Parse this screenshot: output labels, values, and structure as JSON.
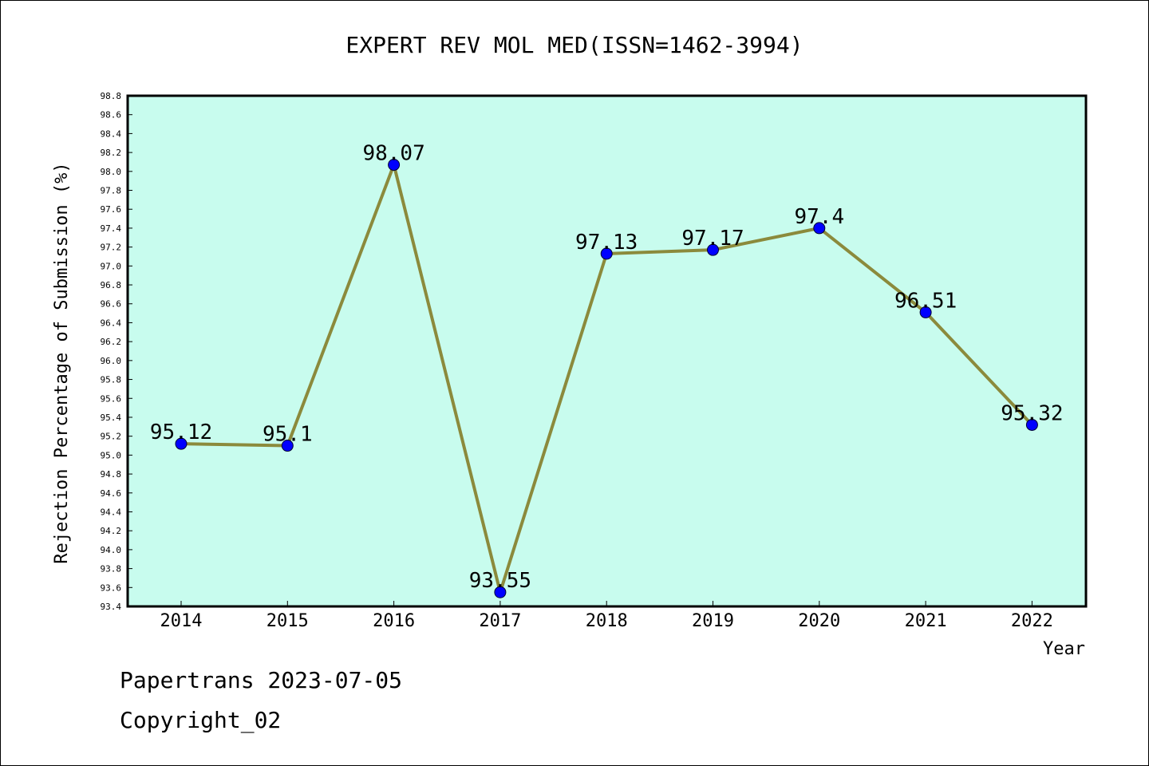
{
  "chart_data": {
    "type": "line",
    "title": "EXPERT REV MOL MED(ISSN=1462-3994)",
    "xlabel": "Year",
    "ylabel": "Rejection Percentage of Submission (%)",
    "categories": [
      "2014",
      "2015",
      "2016",
      "2017",
      "2018",
      "2019",
      "2020",
      "2021",
      "2022"
    ],
    "values": [
      95.12,
      95.1,
      98.07,
      93.55,
      97.13,
      97.17,
      97.4,
      96.51,
      95.32
    ],
    "data_labels": [
      "95.12",
      "95.1",
      "98.07",
      "93.55",
      "97.13",
      "97.17",
      "97.4",
      "96.51",
      "95.32"
    ],
    "ylim": [
      93.4,
      98.8
    ],
    "ytick_step": 0.2,
    "grid": false,
    "colors": {
      "plot_background": "#c8fcee",
      "line": "#8b8a3c",
      "marker": "#0000ff"
    }
  },
  "footer": {
    "line1": "Papertrans 2023-07-05",
    "line2": "Copyright_02"
  }
}
